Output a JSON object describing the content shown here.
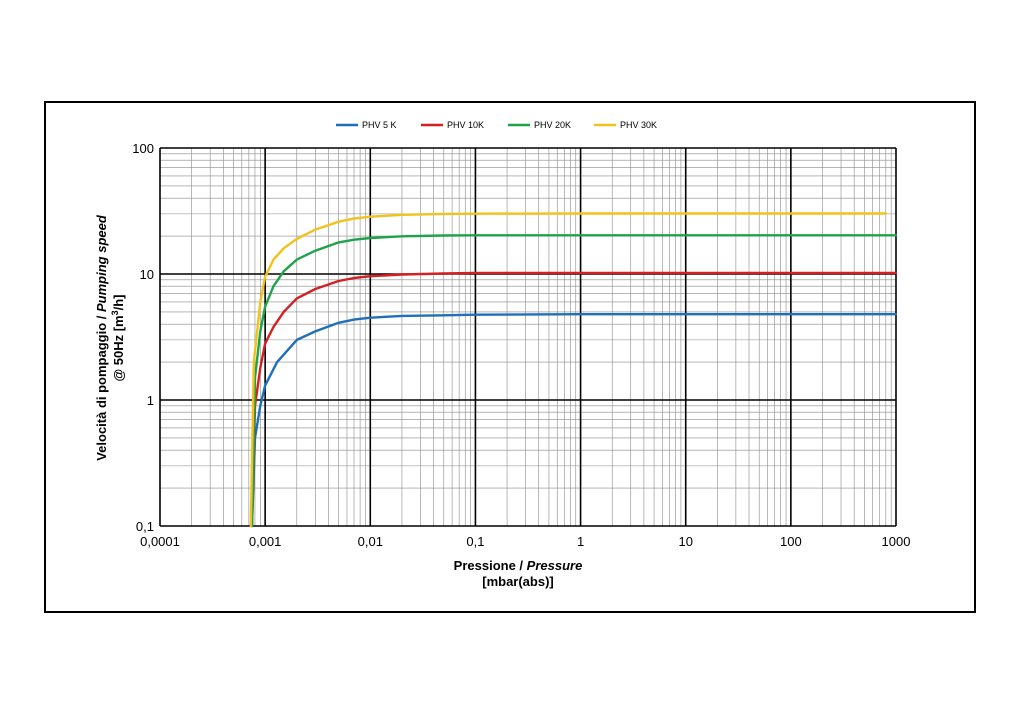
{
  "chart_data": {
    "type": "line",
    "x_scale": "log",
    "y_scale": "log",
    "xlim": [
      0.0001,
      1000
    ],
    "ylim": [
      0.1,
      100
    ],
    "x_ticks": [
      "0,0001",
      "0,001",
      "0,01",
      "0,1",
      "1",
      "10",
      "100",
      "1000"
    ],
    "y_ticks": [
      "0,1",
      "1",
      "10",
      "100"
    ],
    "xlabel": {
      "prefix": "Pressione / ",
      "italic": "Pressure",
      "unit": "[mbar(abs)]"
    },
    "ylabel": {
      "line1_prefix": "Velocità di pompaggio / ",
      "line1_italic": "Pumping speed",
      "line2": "@ 50Hz [m",
      "line2_sup": "3",
      "line2_end": "/h]"
    },
    "grid": true,
    "legend": "top-center",
    "series": [
      {
        "name": "PHV 5 K",
        "color": "#1f6fba",
        "x": [
          0.00075,
          0.0008,
          0.0009,
          0.001,
          0.0013,
          0.002,
          0.003,
          0.005,
          0.007,
          0.01,
          0.02,
          0.05,
          0.1,
          1,
          10,
          100,
          1000
        ],
        "y": [
          0.1,
          0.5,
          0.9,
          1.3,
          2.0,
          3.0,
          3.5,
          4.1,
          4.35,
          4.5,
          4.65,
          4.7,
          4.75,
          4.8,
          4.8,
          4.8,
          4.8
        ]
      },
      {
        "name": "PHV 10K",
        "color": "#d42020",
        "x": [
          0.00075,
          0.0008,
          0.0009,
          0.001,
          0.0012,
          0.0015,
          0.002,
          0.003,
          0.005,
          0.007,
          0.01,
          0.02,
          0.05,
          0.1,
          1,
          10,
          100,
          1000
        ],
        "y": [
          0.1,
          0.9,
          1.8,
          2.8,
          3.8,
          5.0,
          6.4,
          7.6,
          8.8,
          9.3,
          9.6,
          9.9,
          10.1,
          10.2,
          10.2,
          10.2,
          10.2,
          10.2
        ]
      },
      {
        "name": "PHV 20K",
        "color": "#1fa34a",
        "x": [
          0.00075,
          0.0008,
          0.0009,
          0.001,
          0.0012,
          0.0015,
          0.002,
          0.003,
          0.005,
          0.007,
          0.01,
          0.02,
          0.05,
          0.1,
          1,
          10,
          100,
          1000
        ],
        "y": [
          0.1,
          1.5,
          3.5,
          5.5,
          8.0,
          10.5,
          13.0,
          15.3,
          17.8,
          18.7,
          19.3,
          19.9,
          20.2,
          20.3,
          20.3,
          20.3,
          20.3,
          20.3
        ]
      },
      {
        "name": "PHV 30K",
        "color": "#f2c21c",
        "x": [
          0.00073,
          0.00078,
          0.0009,
          0.001,
          0.0012,
          0.0015,
          0.002,
          0.003,
          0.005,
          0.007,
          0.01,
          0.02,
          0.05,
          0.1,
          1,
          10,
          100,
          800
        ],
        "y": [
          0.1,
          2.0,
          6.0,
          9.5,
          13.0,
          16.0,
          19.0,
          22.5,
          26.0,
          27.5,
          28.5,
          29.5,
          30.0,
          30.1,
          30.2,
          30.2,
          30.2,
          30.2
        ]
      }
    ]
  }
}
